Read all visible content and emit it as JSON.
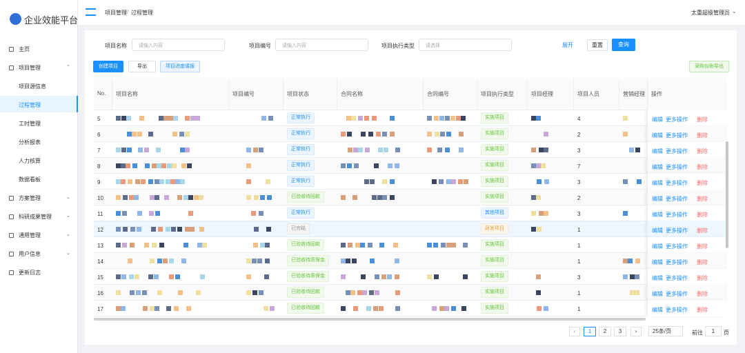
{
  "sidebar": {
    "logo": "企业效能平台",
    "menu": [
      {
        "label": "主页"
      },
      {
        "label": "项目管理",
        "children": [
          "项目源信息",
          "过程管理",
          "工时管理",
          "分析报表",
          "人力核算",
          "数据看板"
        ]
      },
      {
        "label": "方案管理"
      },
      {
        "label": "科研成果管理"
      },
      {
        "label": "通用管理"
      },
      {
        "label": "用户信息"
      },
      {
        "label": "更新日志"
      }
    ]
  },
  "header": {
    "breadcrumb": [
      "项目管理",
      "过程管理"
    ],
    "user": "太重超级管理员"
  },
  "filters": [
    {
      "label": "项目名称",
      "placeholder": "请输入内容"
    },
    {
      "label": "项目编号",
      "placeholder": "请输入内容"
    },
    {
      "label": "项目执行类型",
      "placeholder": "请选择"
    }
  ],
  "filter_buttons": {
    "expand": "展开",
    "reset": "重置",
    "search": "查询"
  },
  "toolbar": {
    "create": "创建项目",
    "export": "导出",
    "progress": "项目进度填报",
    "purchase_export": "采购台账导出"
  },
  "table": {
    "columns": [
      "No.",
      "项目名称",
      "项目编号",
      "项目状态",
      "合同名称",
      "合同编号",
      "项目执行类型",
      "项目经理",
      "项目人员",
      "营销经理",
      "操作"
    ],
    "rows": [
      {
        "no": 5,
        "status": "正常执行",
        "type": "实施项目",
        "staff": 4
      },
      {
        "no": 6,
        "status": "正常执行",
        "type": "实施项目",
        "staff": 2
      },
      {
        "no": 7,
        "status": "正常执行",
        "type": "实施项目",
        "staff": 3
      },
      {
        "no": 8,
        "status": "正常执行",
        "type": "实施项目",
        "staff": 7
      },
      {
        "no": 9,
        "status": "正常执行",
        "type": "实施项目",
        "staff": 3
      },
      {
        "no": 10,
        "status": "已验收待回款",
        "type": "实施项目",
        "staff": 2
      },
      {
        "no": 11,
        "status": "正常执行",
        "type": "其他项目",
        "staff": 3
      },
      {
        "no": 12,
        "status": "已完结",
        "type": "研发项目",
        "staff": 1
      },
      {
        "no": 13,
        "status": "已验收待回款",
        "type": "实施项目",
        "staff": 1
      },
      {
        "no": 14,
        "status": "已验收待质保金",
        "type": "实施项目",
        "staff": 1
      },
      {
        "no": 15,
        "status": "已验收待质保金",
        "type": "实施项目",
        "staff": 3
      },
      {
        "no": 16,
        "status": "已验收待回款",
        "type": "实施项目",
        "staff": 1
      },
      {
        "no": 17,
        "status": "已验收待回款",
        "type": "实施项目",
        "staff": 1
      }
    ],
    "actions": [
      "编辑",
      "更多操作",
      "删除"
    ]
  },
  "pagination": {
    "pages": [
      1,
      2,
      3
    ],
    "page_size": "25条/页",
    "goto": "前往",
    "goto_value": 1,
    "page_unit": "页"
  }
}
